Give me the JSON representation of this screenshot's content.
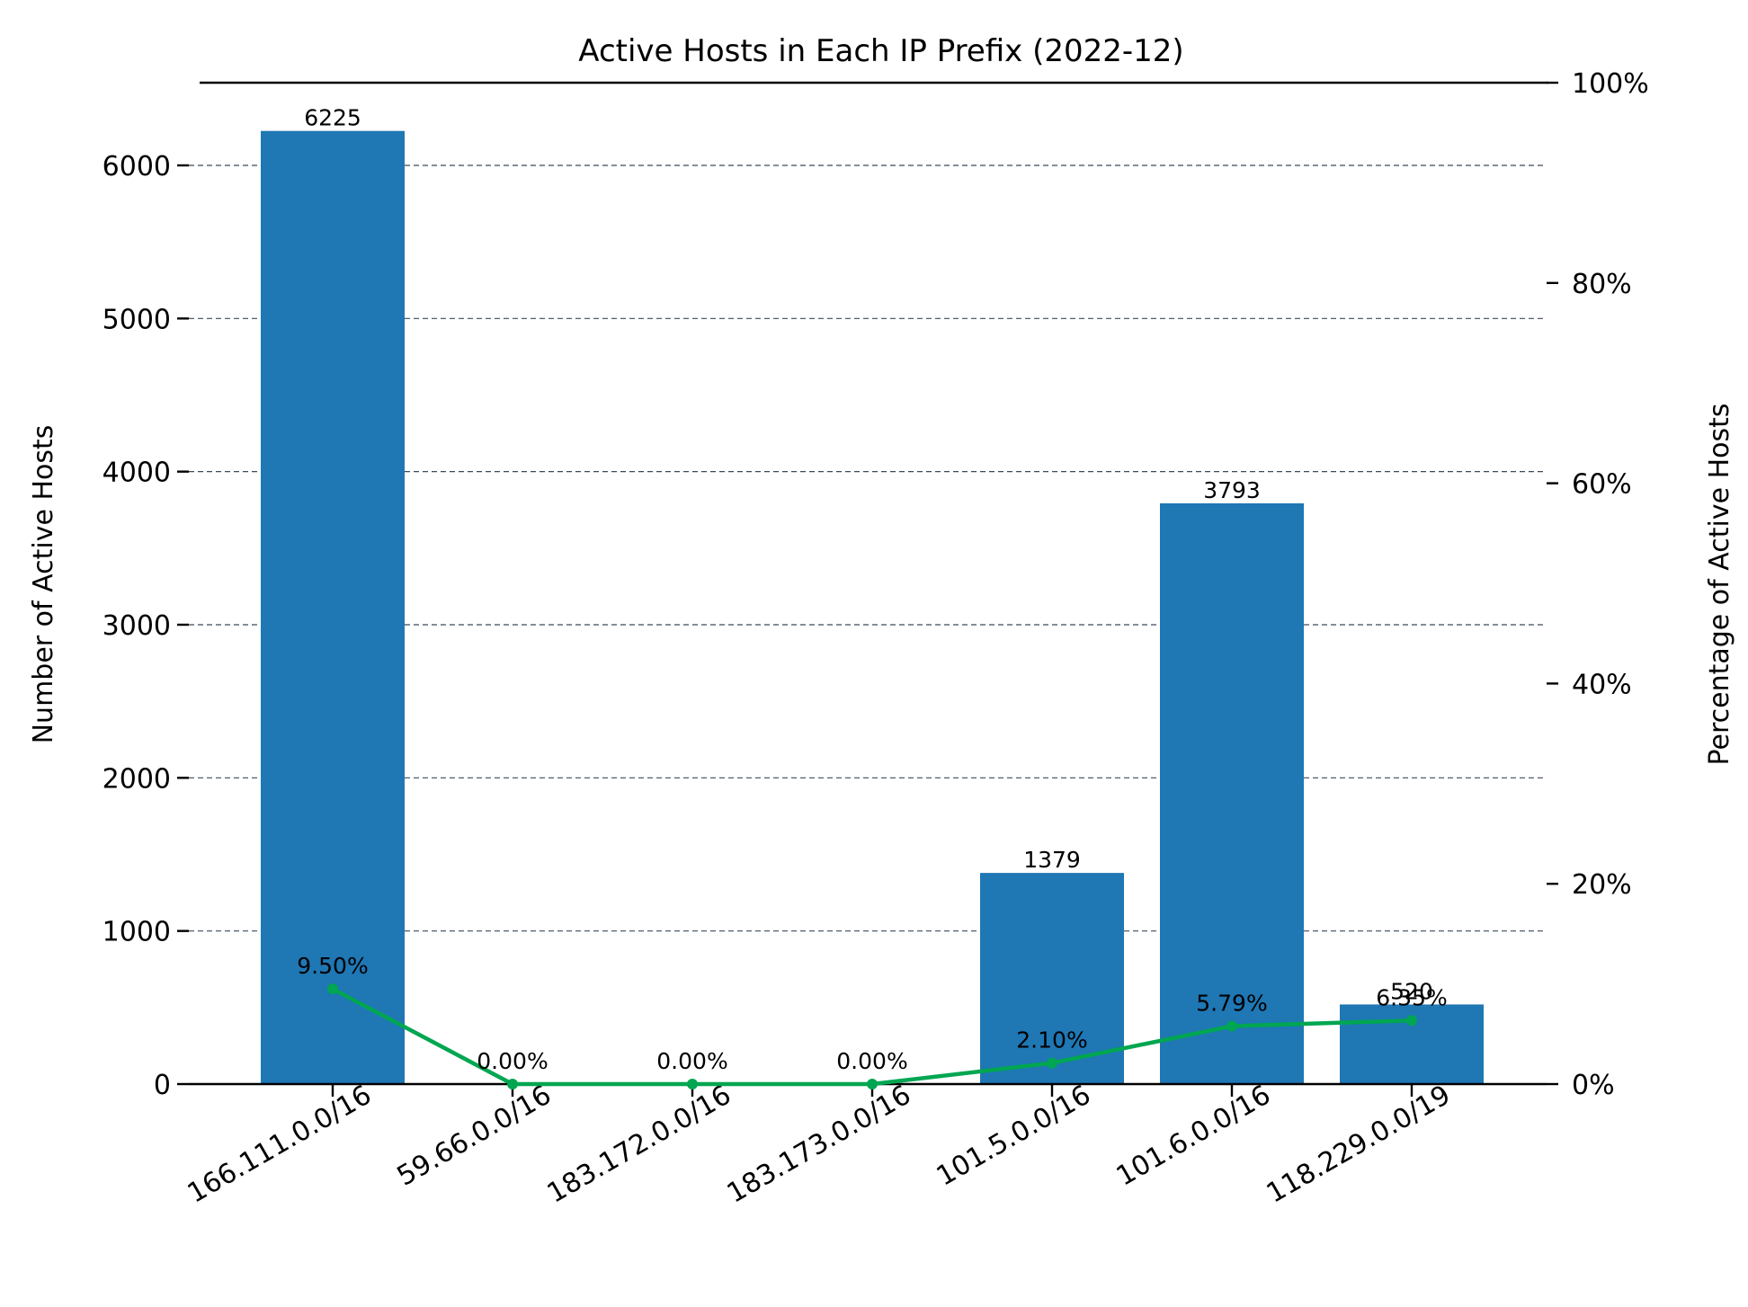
{
  "chart_data": {
    "type": "bar",
    "title": "Active Hosts in Each IP Prefix (2022-12)",
    "xlabel": "",
    "ylabel": "Number of Active Hosts",
    "y2label": "Percentage of Active Hosts",
    "categories": [
      "166.111.0.0/16",
      "59.66.0.0/16",
      "183.172.0.0/16",
      "183.173.0.0/16",
      "101.5.0.0/16",
      "101.6.0.0/16",
      "118.229.0.0/19"
    ],
    "series": [
      {
        "type": "bar",
        "axis": "left",
        "values": [
          6225,
          0,
          0,
          0,
          1379,
          3793,
          520
        ],
        "labels": [
          "6225",
          "",
          "",
          "",
          "1379",
          "3793",
          "520"
        ],
        "color": "#1f77b4"
      },
      {
        "type": "line",
        "axis": "right",
        "values": [
          9.5,
          0.0,
          0.0,
          0.0,
          2.1,
          5.79,
          6.35
        ],
        "labels": [
          "9.50%",
          "0.00%",
          "0.00%",
          "0.00%",
          "2.10%",
          "5.79%",
          "6.35%"
        ],
        "color": "#00a651"
      }
    ],
    "ylim": [
      0,
      6540
    ],
    "y2lim": [
      0,
      100
    ],
    "yticks": [
      0,
      1000,
      2000,
      3000,
      4000,
      5000,
      6000
    ],
    "ytick_labels": [
      "0",
      "1000",
      "2000",
      "3000",
      "4000",
      "5000",
      "6000"
    ],
    "y2ticks": [
      0,
      20,
      40,
      60,
      80,
      100
    ],
    "y2tick_labels": [
      "0%",
      "20%",
      "40%",
      "60%",
      "80%",
      "100%"
    ],
    "grid": "y-dashed",
    "xtick_rotation_deg": 30
  }
}
